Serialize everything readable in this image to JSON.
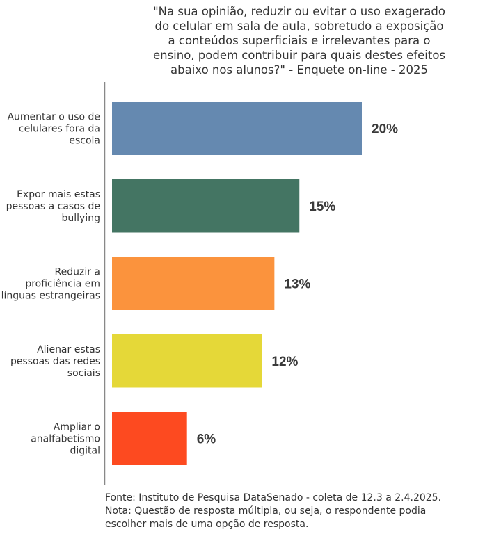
{
  "title_lines": [
    "\"Na sua opinião, reduzir ou evitar o uso exagerado",
    "do celular em sala de aula, sobretudo a exposição",
    "a conteúdos superficiais e irrelevantes para o",
    "ensino, podem contribuir para quais destes efeitos",
    "abaixo nos alunos?\" - Enquete on-line - 2025"
  ],
  "footer": {
    "source": "Fonte: Instituto de Pesquisa DataSenado - coleta de 12.3 a 2.4.2025.",
    "note_lines": [
      "Nota: Questão de resposta múltipla, ou seja, o respondente podia",
      "escolher mais de uma opção de resposta."
    ]
  },
  "chart_data": {
    "type": "bar",
    "orientation": "horizontal",
    "categories": [
      [
        "Aumentar o uso de",
        "celulares fora da",
        "escola"
      ],
      [
        "Expor mais estas",
        "pessoas a casos de",
        "bullying"
      ],
      [
        "Reduzir a",
        "proficiência em",
        "línguas estrangeiras"
      ],
      [
        "Alienar estas",
        "pessoas das redes",
        "sociais"
      ],
      [
        "Ampliar o",
        "analfabetismo",
        "digital"
      ]
    ],
    "values": [
      20,
      15,
      13,
      12,
      6
    ],
    "value_labels": [
      "20%",
      "15%",
      "13%",
      "12%",
      "6%"
    ],
    "colors": [
      "#6589b0",
      "#447563",
      "#fb933d",
      "#e5d838",
      "#fd4a20"
    ],
    "xlim": [
      0,
      20
    ],
    "grid": false,
    "legend": "none"
  }
}
